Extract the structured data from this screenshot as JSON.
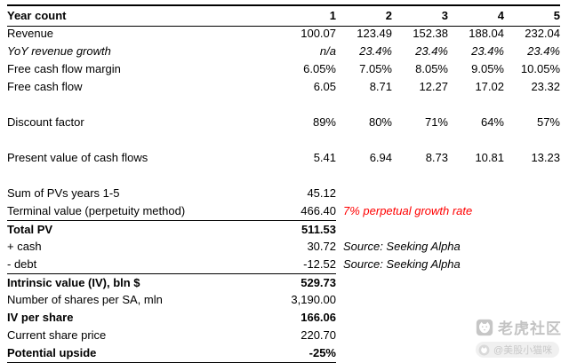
{
  "table": {
    "header": {
      "label": "Year count",
      "values": [
        "1",
        "2",
        "3",
        "4",
        "5"
      ]
    },
    "rows": [
      {
        "label": "Revenue",
        "values": [
          "100.07",
          "123.49",
          "152.38",
          "188.04",
          "232.04"
        ]
      },
      {
        "label": "YoY revenue growth",
        "values": [
          "n/a",
          "23.4%",
          "23.4%",
          "23.4%",
          "23.4%"
        ],
        "italic": true
      },
      {
        "label": "Free cash flow margin",
        "values": [
          "6.05%",
          "7.05%",
          "8.05%",
          "9.05%",
          "10.05%"
        ]
      },
      {
        "label": "Free cash flow",
        "values": [
          "6.05",
          "8.71",
          "12.27",
          "17.02",
          "23.32"
        ]
      },
      {
        "blank": true
      },
      {
        "label": "Discount factor",
        "values": [
          "89%",
          "80%",
          "71%",
          "64%",
          "57%"
        ]
      },
      {
        "blank": true
      },
      {
        "label": "Present value of cash flows",
        "values": [
          "5.41",
          "6.94",
          "8.73",
          "10.81",
          "13.23"
        ]
      },
      {
        "blank": true
      },
      {
        "label": "Sum of PVs years 1-5",
        "values": [
          "45.12"
        ]
      },
      {
        "label": "Terminal value (perpetuity method)",
        "values": [
          "466.40"
        ],
        "note": "7% perpetual growth rate",
        "note_red": true
      },
      {
        "label": "Total PV",
        "values": [
          "511.53"
        ],
        "bold": true,
        "border_top": true
      },
      {
        "label": "+ cash",
        "values": [
          "30.72"
        ],
        "note": "Source: Seeking Alpha"
      },
      {
        "label": "- debt",
        "values": [
          "-12.52"
        ],
        "note": "Source: Seeking Alpha"
      },
      {
        "label": "Intrinsic value (IV), bln $",
        "values": [
          "529.73"
        ],
        "bold": true,
        "border_top": true
      },
      {
        "label": "Number of shares per SA, mln",
        "values": [
          "3,190.00"
        ]
      },
      {
        "label": "IV per share",
        "values": [
          "166.06"
        ],
        "bold": true
      },
      {
        "label": "Current share price",
        "values": [
          "220.70"
        ]
      },
      {
        "label": "Potential upside",
        "values": [
          "-25%"
        ],
        "bold": true,
        "border_bottom": true
      }
    ]
  },
  "watermark": {
    "brand": "老虎社区",
    "handle": "@美股小猫咪"
  },
  "colors": {
    "note_red": "#ff0000",
    "text": "#000000",
    "watermark_gray": "#c3c3c3"
  }
}
